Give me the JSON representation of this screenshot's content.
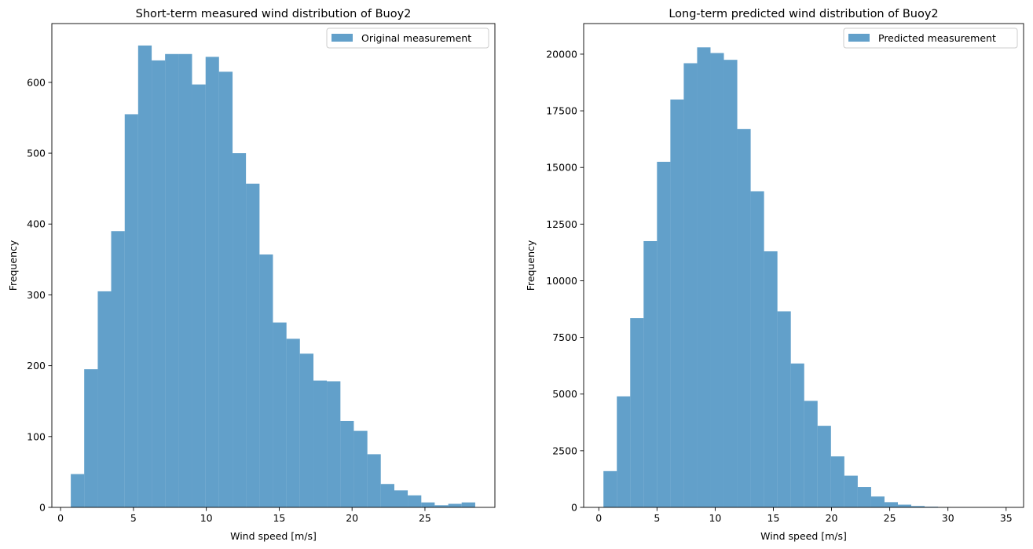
{
  "chart_data": [
    {
      "type": "bar",
      "title": "Short-term measured wind distribution of Buoy2",
      "xlabel": "Wind speed [m/s]",
      "ylabel": "Frequency",
      "legend": "Original measurement",
      "legend_position": "top-right",
      "color": "#1f77b4",
      "bar_opacity": 0.7,
      "xlim": [
        -0.6,
        29.8
      ],
      "ylim": [
        0,
        683
      ],
      "xticks": [
        0,
        5,
        10,
        15,
        20,
        25
      ],
      "yticks": [
        0,
        100,
        200,
        300,
        400,
        500,
        600
      ],
      "bin_edges": [
        0.7,
        1.62,
        2.55,
        3.47,
        4.4,
        5.32,
        6.25,
        7.17,
        8.1,
        9.02,
        9.95,
        10.87,
        11.8,
        12.72,
        13.65,
        14.57,
        15.5,
        16.42,
        17.35,
        18.27,
        19.2,
        20.12,
        21.05,
        21.97,
        22.9,
        23.82,
        24.75,
        25.67,
        26.6,
        27.52,
        28.45
      ],
      "values": [
        47,
        195,
        305,
        390,
        555,
        652,
        631,
        640,
        640,
        597,
        636,
        615,
        500,
        457,
        357,
        261,
        238,
        217,
        179,
        178,
        122,
        108,
        75,
        33,
        24,
        17,
        7,
        3,
        5,
        7
      ]
    },
    {
      "type": "bar",
      "title": "Long-term predicted wind distribution of Buoy2",
      "xlabel": "Wind speed [m/s]",
      "ylabel": "Frequency",
      "legend": "Predicted measurement",
      "legend_position": "top-right",
      "color": "#1f77b4",
      "bar_opacity": 0.7,
      "xlim": [
        -1.3,
        36.5
      ],
      "ylim": [
        0,
        21350
      ],
      "xticks": [
        0,
        5,
        10,
        15,
        20,
        25,
        30,
        35
      ],
      "yticks": [
        0,
        2500,
        5000,
        7500,
        10000,
        12500,
        15000,
        17500,
        20000
      ],
      "bin_edges": [
        0.4,
        1.55,
        2.7,
        3.85,
        5.0,
        6.15,
        7.3,
        8.45,
        9.6,
        10.75,
        11.9,
        13.05,
        14.2,
        15.35,
        16.5,
        17.65,
        18.8,
        19.95,
        21.1,
        22.25,
        23.4,
        24.55,
        25.7,
        26.85,
        28.0,
        29.15,
        30.3,
        31.45,
        32.6,
        33.75,
        34.9
      ],
      "values": [
        1600,
        4900,
        8350,
        11750,
        15250,
        18000,
        19600,
        20300,
        20050,
        19750,
        16700,
        13950,
        11300,
        8650,
        6350,
        4700,
        3600,
        2250,
        1400,
        900,
        480,
        230,
        120,
        60,
        30,
        15,
        8,
        4,
        2,
        1
      ]
    }
  ]
}
